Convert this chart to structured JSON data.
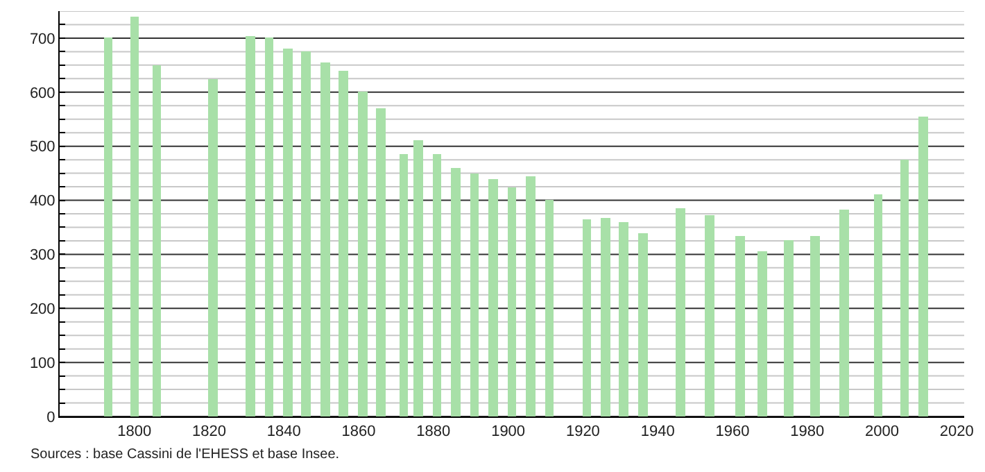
{
  "chart_data": {
    "type": "bar",
    "x": [
      1793,
      1800,
      1806,
      1821,
      1831,
      1836,
      1841,
      1846,
      1851,
      1856,
      1861,
      1866,
      1872,
      1876,
      1881,
      1886,
      1891,
      1896,
      1901,
      1906,
      1911,
      1921,
      1926,
      1931,
      1936,
      1946,
      1954,
      1962,
      1968,
      1975,
      1982,
      1990,
      1999,
      2006,
      2011
    ],
    "values": [
      700,
      740,
      650,
      625,
      705,
      700,
      680,
      675,
      655,
      640,
      600,
      570,
      485,
      510,
      485,
      460,
      450,
      440,
      425,
      445,
      400,
      365,
      367,
      360,
      340,
      385,
      372,
      335,
      305,
      325,
      335,
      382,
      410,
      475,
      555
    ],
    "color": "#a8e0a8",
    "xlim": [
      1780,
      2022
    ],
    "xticks": [
      1800,
      1820,
      1840,
      1860,
      1880,
      1900,
      1920,
      1940,
      1960,
      1980,
      2000,
      2020
    ],
    "ylim": [
      0,
      750
    ],
    "yticks": [
      0,
      {
        "value": 25,
        "label": null
      },
      {
        "value": 50,
        "label": null
      },
      {
        "value": 75,
        "label": null
      },
      100,
      {
        "value": 125,
        "label": null
      },
      {
        "value": 150,
        "label": null
      },
      {
        "value": 175,
        "label": null
      },
      200,
      {
        "value": 225,
        "label": null
      },
      {
        "value": 250,
        "label": null
      },
      {
        "value": 275,
        "label": null
      },
      300,
      {
        "value": 325,
        "label": null
      },
      {
        "value": 350,
        "label": null
      },
      {
        "value": 375,
        "label": null
      },
      400,
      {
        "value": 425,
        "label": null
      },
      {
        "value": 450,
        "label": null
      },
      {
        "value": 475,
        "label": null
      },
      500,
      {
        "value": 525,
        "label": null
      },
      {
        "value": 550,
        "label": null
      },
      {
        "value": 575,
        "label": null
      },
      600,
      {
        "value": 625,
        "label": null
      },
      {
        "value": 650,
        "label": null
      },
      {
        "value": 675,
        "label": null
      },
      700,
      {
        "value": 725,
        "label": null
      },
      {
        "value": 750,
        "label": null
      }
    ],
    "grid": "y",
    "annotations": [
      "Sources : base Cassini de l'EHESS et base Insee."
    ]
  }
}
